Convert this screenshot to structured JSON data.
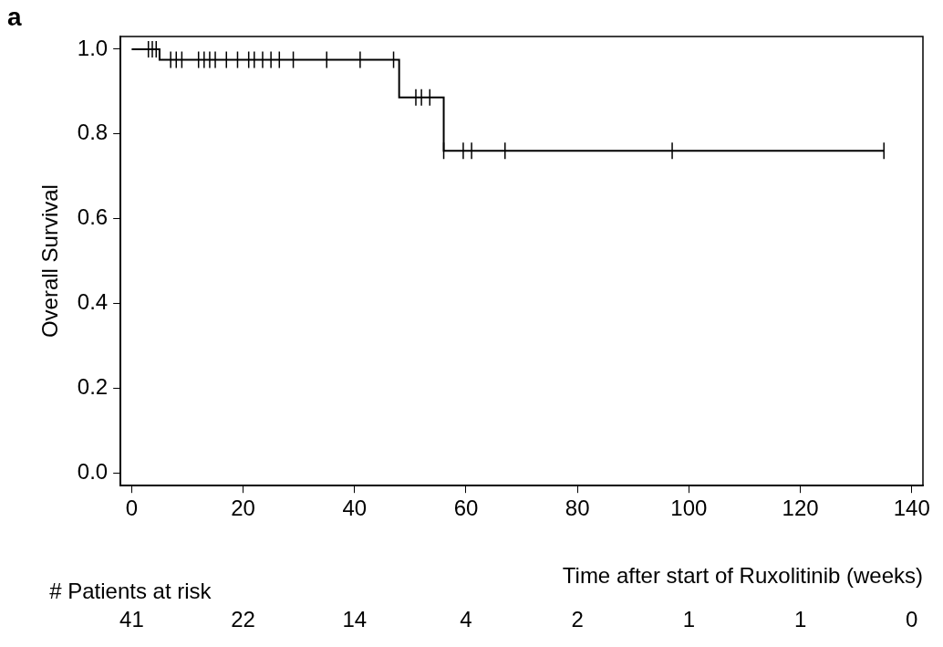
{
  "chart_data": {
    "type": "line",
    "panel_label": "a",
    "x_label": "Time after start of Ruxolitinib (weeks)",
    "y_label": "Overall Survival",
    "xlim": [
      -2,
      142
    ],
    "xticks": [
      0,
      20,
      40,
      60,
      80,
      100,
      120,
      140
    ],
    "ylim": [
      -0.03,
      1.03
    ],
    "yticks": [
      {
        "value": 0,
        "label": "0.0"
      },
      {
        "value": 0.2,
        "label": "0.2"
      },
      {
        "value": 0.4,
        "label": "0.4"
      },
      {
        "value": 0.6,
        "label": "0.6"
      },
      {
        "value": 0.8,
        "label": "0.8"
      },
      {
        "value": 1.0,
        "label": "1.0"
      }
    ],
    "grid": false,
    "series": [
      {
        "type": "line",
        "line_style": "step",
        "color": "#000000",
        "x": [
          0,
          5,
          48,
          56,
          135
        ],
        "values": [
          1.0,
          0.975,
          0.886,
          0.76,
          0.76
        ]
      },
      {
        "type": "scatter",
        "marker": "|",
        "color": "#000000",
        "x": [
          3,
          3.7,
          4.4,
          7,
          8,
          9,
          12,
          13,
          14,
          15,
          17,
          19,
          21,
          22,
          23.5,
          25,
          26.5,
          29,
          35,
          41,
          47,
          51,
          52,
          53.5,
          56,
          59.5,
          61,
          67,
          97,
          135
        ],
        "values": [
          1.0,
          1.0,
          1.0,
          0.975,
          0.975,
          0.975,
          0.975,
          0.975,
          0.975,
          0.975,
          0.975,
          0.975,
          0.975,
          0.975,
          0.975,
          0.975,
          0.975,
          0.975,
          0.975,
          0.975,
          0.975,
          0.886,
          0.886,
          0.886,
          0.76,
          0.76,
          0.76,
          0.76,
          0.76,
          0.76
        ]
      }
    ],
    "at_risk": {
      "label": "# Patients at risk",
      "x": [
        0,
        20,
        40,
        60,
        80,
        100,
        120,
        140
      ],
      "values": [
        41,
        22,
        14,
        4,
        2,
        1,
        1,
        0
      ]
    }
  }
}
